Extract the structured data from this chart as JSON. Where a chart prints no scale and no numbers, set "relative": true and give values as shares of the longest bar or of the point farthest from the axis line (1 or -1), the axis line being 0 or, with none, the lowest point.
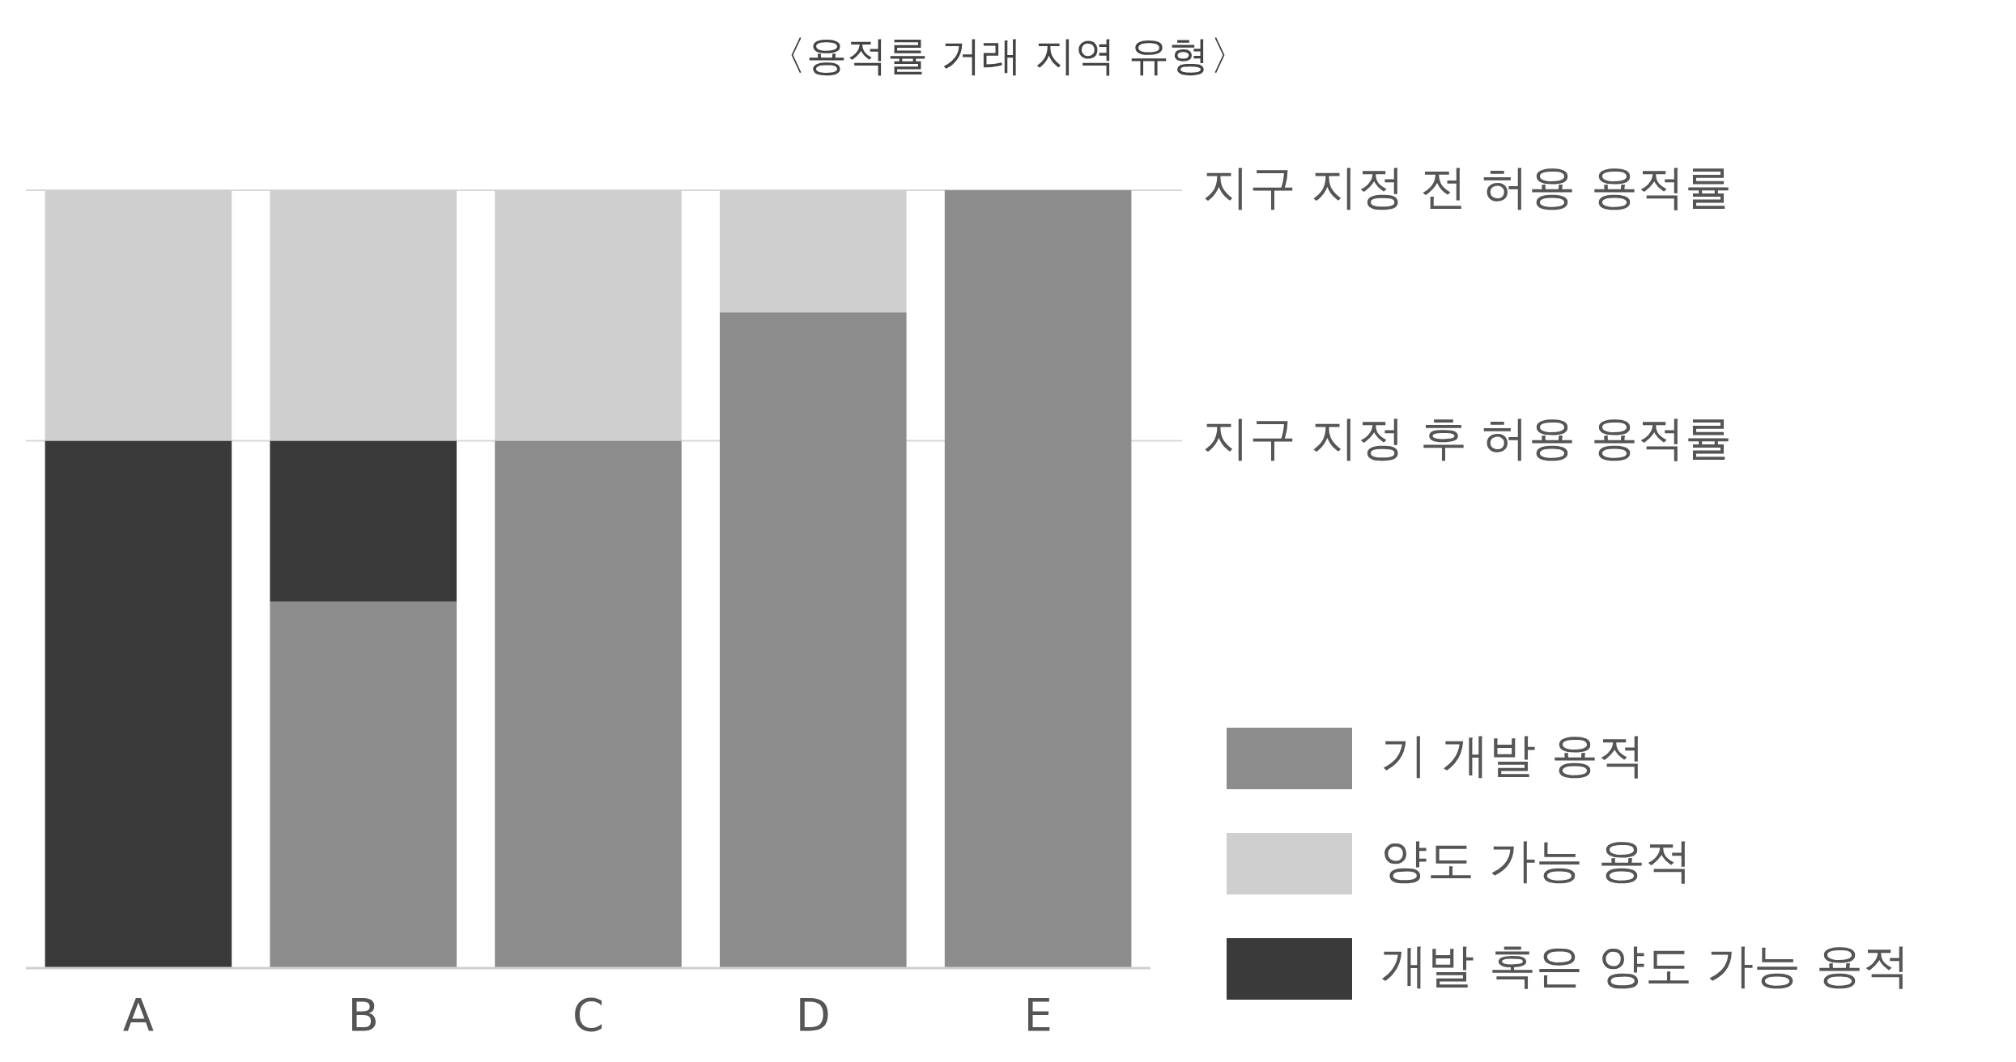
{
  "chart_data": {
    "type": "bar",
    "title": "〈용적률 거래 지역 유형〉",
    "stacked": true,
    "relative": true,
    "grid": false,
    "legend": "right",
    "categories": [
      "A",
      "B",
      "C",
      "D",
      "E"
    ],
    "series": [
      {
        "name": "기 개발 용적",
        "color": "#8c8c8c",
        "values": [
          0,
          0.471,
          0.678,
          0.843,
          1
        ]
      },
      {
        "name": "개발 혹은 양도 가능 용적",
        "color": "#3a3a3a",
        "values": [
          0.678,
          0.207,
          0,
          0,
          0
        ]
      },
      {
        "name": "양도 가능 용적",
        "color": "#cfcfcf",
        "values": [
          0.322,
          0.322,
          0.322,
          0.157,
          0
        ]
      }
    ],
    "ref_lines": [
      {
        "axis": "y",
        "value": 1,
        "label": "지구 지정 전 허용 용적률",
        "color": "#d8d8d8"
      },
      {
        "axis": "y",
        "value": 0.678,
        "label": "지구 지정 후 허용 용적률",
        "color": "#d8d8d8"
      }
    ]
  }
}
